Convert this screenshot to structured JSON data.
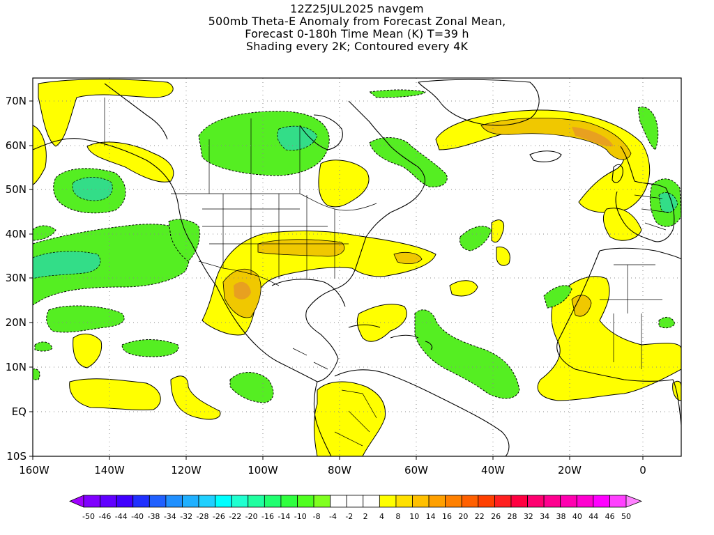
{
  "title": {
    "line1": "12Z25JUL2025 navgem",
    "line2": "500mb Theta-E Anomaly from Forecast Zonal Mean,",
    "line3": "Forecast 0-180h Time Mean (K) T=39 h",
    "line4": "Shading every 2K; Contoured every 4K"
  },
  "axes": {
    "lon_labels": [
      "160W",
      "140W",
      "120W",
      "100W",
      "80W",
      "60W",
      "40W",
      "20W",
      "0"
    ],
    "lat_labels": [
      "70N",
      "60N",
      "50N",
      "40N",
      "30N",
      "20N",
      "10N",
      "EQ",
      "10S"
    ]
  },
  "colorbar": {
    "labels": [
      "-50",
      "-46",
      "-44",
      "-40",
      "-38",
      "-34",
      "-32",
      "-28",
      "-26",
      "-22",
      "-20",
      "-16",
      "-14",
      "-10",
      "-8",
      "-4",
      "-2",
      "2",
      "4",
      "8",
      "10",
      "14",
      "16",
      "20",
      "22",
      "26",
      "28",
      "32",
      "34",
      "38",
      "40",
      "44",
      "46",
      "50"
    ],
    "colors": [
      "#a000ff",
      "#8000ff",
      "#6000ff",
      "#4000ff",
      "#2030ff",
      "#2060ff",
      "#2090ff",
      "#20b0ff",
      "#20d0ff",
      "#00ffff",
      "#20ffd0",
      "#20ffa0",
      "#20ff70",
      "#30ff40",
      "#50ff20",
      "#80ff20",
      "#ffffff",
      "#ffffff",
      "#ffffff",
      "#ffff00",
      "#ffe000",
      "#ffc000",
      "#ffa000",
      "#ff8000",
      "#ff6000",
      "#ff4000",
      "#ff2020",
      "#ff0040",
      "#ff0070",
      "#ff0090",
      "#ff00b0",
      "#ff00d0",
      "#ff00ff",
      "#ff40ff",
      "#ff80ff"
    ]
  },
  "shading_colors": {
    "positive_light": "#ffff00",
    "positive_mid": "#f0c800",
    "positive_strong": "#e8a020",
    "negative_light": "#55ee22",
    "negative_strong": "#33dd88"
  }
}
